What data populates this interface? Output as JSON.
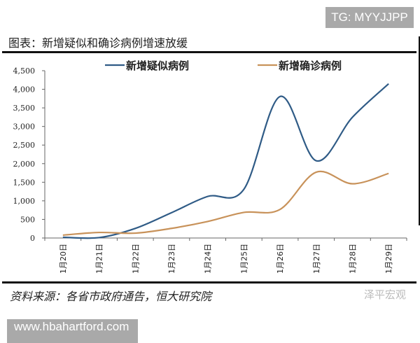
{
  "watermark_top": "TG: MYYJJPP",
  "watermark_bottom": "www.hbahartford.com",
  "watermark_logo": "泽平宏观",
  "figure_title": "图表：新增疑似和确诊病例增速放缓",
  "source": "资料来源：各省市政府通告，恒大研究院",
  "chart_data": {
    "type": "line",
    "title": "",
    "xlabel": "",
    "ylabel": "",
    "categories": [
      "1月20日",
      "1月21日",
      "1月22日",
      "1月23日",
      "1月24日",
      "1月25日",
      "1月26日",
      "1月27日",
      "1月28日",
      "1月29日"
    ],
    "ylim": [
      0,
      4500
    ],
    "yticks": [
      "0",
      "500",
      "1,000",
      "1,500",
      "2,000",
      "2,500",
      "3,000",
      "3,500",
      "4,000",
      "4,500"
    ],
    "ytick_values": [
      0,
      500,
      1000,
      1500,
      2000,
      2500,
      3000,
      3500,
      4000,
      4500
    ],
    "grid": false,
    "legend": "top",
    "smooth": true,
    "series": [
      {
        "name": "新增疑似病例",
        "color": "#2f5b86",
        "values": [
          20,
          10,
          257,
          680,
          1118,
          1309,
          3806,
          2077,
          3248,
          4148
        ]
      },
      {
        "name": "新增确诊病例",
        "color": "#c8925a",
        "values": [
          77,
          149,
          131,
          259,
          444,
          688,
          769,
          1771,
          1459,
          1737
        ]
      }
    ]
  }
}
